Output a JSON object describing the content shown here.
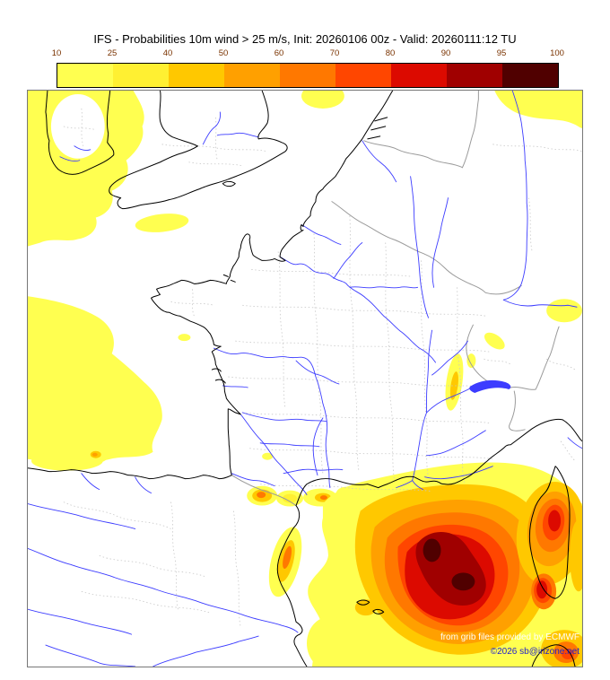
{
  "title": "IFS - Probabilities 10m wind > 25 m/s, Init: 20260106 00z - Valid: 20260111:12 TU",
  "colorbar": {
    "tick_labels": [
      "10",
      "25",
      "40",
      "50",
      "60",
      "70",
      "80",
      "90",
      "95",
      "100"
    ],
    "tick_color": "#7a3300",
    "segment_colors": [
      "#ffff50",
      "#fff032",
      "#ffc800",
      "#ffa000",
      "#ff7800",
      "#ff4600",
      "#dc0a00",
      "#a00000",
      "#500000"
    ],
    "border_color": "#000000"
  },
  "map": {
    "background": "#ffffff",
    "frame_color": "#777777",
    "coastline_color": "#000000",
    "river_color": "#3c3cff",
    "country_border_color": "#9a9a9a",
    "admin_boundary_color": "#c8c8c8",
    "lake_color": "#3c3cff"
  },
  "attribution": {
    "line1": "from grib files provided by ECMWF",
    "line1_color": "#ffffff",
    "line2": "©2026 sb@irizone.net",
    "line2_color": "#2222cc"
  }
}
